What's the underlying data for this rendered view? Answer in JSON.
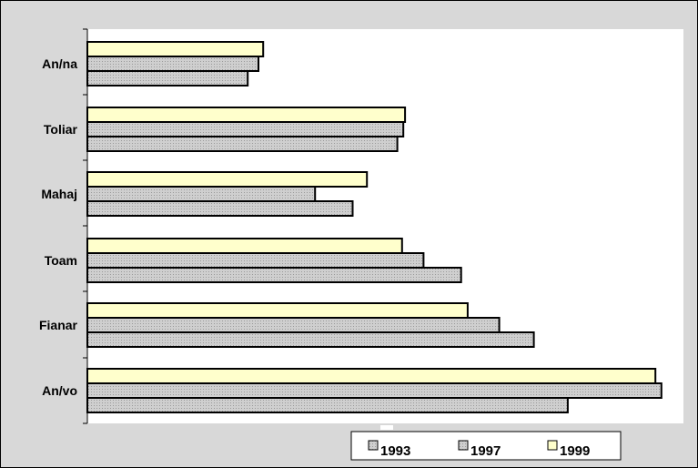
{
  "chart_data": {
    "type": "bar",
    "orientation": "horizontal",
    "title": "",
    "xlabel": "",
    "ylabel": "",
    "grid": false,
    "legend_position": "bottom-right",
    "xlim": [
      0,
      100
    ],
    "categories": [
      "An/na",
      "Toliar",
      "Mahaj",
      "Toam",
      "Fianar",
      "An/vo"
    ],
    "series": [
      {
        "name": "1999",
        "color": "#ffffcc",
        "values": [
          29.5,
          53.3,
          46.9,
          52.8,
          63.8,
          95.3
        ]
      },
      {
        "name": "1997",
        "color": "#c8c8c8",
        "values": [
          28.7,
          53.0,
          38.2,
          56.4,
          69.1,
          96.3
        ]
      },
      {
        "name": "1993",
        "color": "#c8c8c8",
        "values": [
          26.9,
          52.0,
          44.5,
          62.7,
          74.9,
          80.6
        ]
      }
    ],
    "legend": [
      "1993",
      "1997",
      "1999"
    ]
  }
}
